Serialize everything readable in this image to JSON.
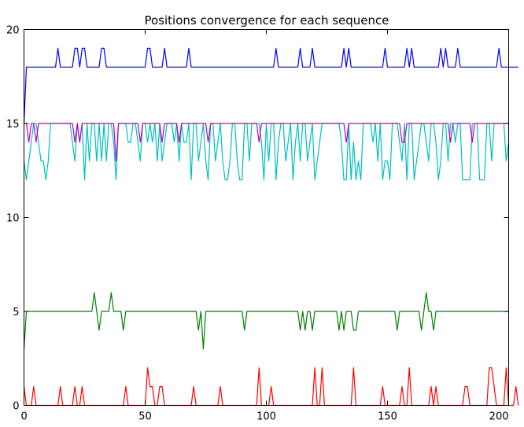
{
  "chart_data": {
    "type": "line",
    "title": "Positions convergence for each sequence",
    "xlabel": "",
    "ylabel": "",
    "xlim": [
      0,
      200
    ],
    "ylim": [
      0,
      20
    ],
    "xticks": [
      0,
      50,
      100,
      150,
      200
    ],
    "yticks": [
      0,
      5,
      10,
      15,
      20
    ],
    "grid": false,
    "series": [
      {
        "color": "#0000ff",
        "base": 18,
        "start": 15,
        "values": [
          15,
          18,
          18,
          18,
          18,
          18,
          18,
          18,
          18,
          18,
          18,
          18,
          18,
          18,
          19,
          18,
          18,
          18,
          18,
          18,
          18,
          19,
          19,
          18,
          19,
          19,
          18,
          18,
          18,
          18,
          18,
          18,
          19,
          19,
          18,
          18,
          18,
          18,
          18,
          18,
          18,
          18,
          18,
          18,
          18,
          18,
          18,
          18,
          18,
          18,
          18,
          19,
          19,
          18,
          18,
          18,
          18,
          18,
          19,
          18,
          18,
          18,
          18,
          18,
          18,
          18,
          18,
          18,
          19,
          18,
          18,
          18,
          18,
          18,
          18,
          18,
          18,
          18,
          18,
          18,
          18,
          18,
          18,
          18,
          18,
          18,
          18,
          18,
          18,
          18,
          18,
          18,
          18,
          18,
          18,
          18,
          18,
          18,
          18,
          18,
          18,
          18,
          18,
          18,
          19,
          18,
          18,
          18,
          18,
          18,
          18,
          18,
          18,
          18,
          19,
          18,
          18,
          18,
          18,
          19,
          18,
          18,
          18,
          18,
          18,
          18,
          18,
          18,
          18,
          18,
          18,
          18,
          19,
          18,
          19,
          18,
          18,
          18,
          18,
          18,
          18,
          18,
          18,
          18,
          18,
          18,
          18,
          18,
          18,
          19,
          18,
          18,
          18,
          18,
          18,
          18,
          18,
          18,
          19,
          18,
          19,
          18,
          18,
          18,
          18,
          18,
          18,
          18,
          18,
          18,
          18,
          18,
          19,
          18,
          19,
          18,
          18,
          18,
          18,
          19,
          18,
          18,
          18,
          18,
          18,
          18,
          18,
          18,
          18,
          18,
          18,
          18,
          18,
          18,
          18,
          18,
          19,
          18,
          18,
          18,
          18,
          18,
          18,
          18,
          18
        ]
      },
      {
        "color": "#00bfbf",
        "values": [
          13,
          12,
          13,
          14,
          15,
          15,
          14,
          13,
          13,
          12,
          13,
          15,
          15,
          15,
          15,
          15,
          15,
          15,
          15,
          15,
          14,
          13,
          15,
          14,
          15,
          12,
          15,
          13,
          15,
          15,
          13,
          15,
          13,
          15,
          13,
          15,
          15,
          14,
          12,
          15,
          15,
          15,
          15,
          14,
          14,
          15,
          15,
          14,
          13,
          15,
          15,
          14,
          15,
          14,
          15,
          13,
          15,
          13,
          14,
          15,
          15,
          15,
          14,
          15,
          13,
          15,
          14,
          14,
          15,
          12,
          15,
          15,
          13,
          14,
          15,
          13,
          12,
          15,
          15,
          13,
          14,
          15,
          13,
          12,
          12,
          13,
          15,
          15,
          13,
          12,
          12,
          15,
          15,
          13,
          15,
          15,
          15,
          15,
          14,
          12,
          15,
          13,
          15,
          15,
          12,
          14,
          15,
          15,
          13,
          14,
          15,
          12,
          14,
          15,
          13,
          15,
          15,
          13,
          14,
          15,
          12,
          13,
          14,
          15,
          15,
          15,
          15,
          15,
          15,
          15,
          15,
          14,
          12,
          12,
          15,
          12,
          14,
          12,
          13,
          12,
          15,
          15,
          15,
          15,
          14,
          15,
          13,
          15,
          12,
          13,
          13,
          12,
          15,
          15,
          15,
          14,
          13,
          15,
          12,
          15,
          15,
          12,
          13,
          14,
          15,
          15,
          14,
          13,
          15,
          15,
          14,
          12,
          13,
          15,
          15,
          13,
          15,
          15,
          14,
          15,
          15,
          12,
          12,
          12,
          12,
          15,
          15,
          15,
          12,
          12,
          12,
          15,
          15,
          13,
          15,
          15,
          15,
          15,
          15,
          13,
          14
        ]
      },
      {
        "color": "#bf00bf",
        "values": [
          15,
          15,
          14,
          15,
          15,
          14,
          15,
          15,
          15,
          15,
          15,
          15,
          15,
          15,
          15,
          15,
          15,
          15,
          15,
          15,
          15,
          14,
          15,
          14,
          15,
          15,
          15,
          15,
          15,
          15,
          15,
          15,
          15,
          15,
          15,
          15,
          15,
          15,
          13,
          15,
          15,
          15,
          15,
          15,
          15,
          15,
          15,
          15,
          14,
          15,
          15,
          15,
          15,
          15,
          15,
          15,
          15,
          14,
          15,
          15,
          15,
          15,
          15,
          15,
          14,
          15,
          15,
          15,
          15,
          15,
          15,
          15,
          15,
          15,
          15,
          15,
          14,
          15,
          15,
          15,
          15,
          15,
          15,
          15,
          15,
          15,
          15,
          15,
          15,
          15,
          15,
          15,
          15,
          15,
          15,
          15,
          15,
          14,
          15,
          15,
          15,
          15,
          15,
          15,
          15,
          15,
          15,
          15,
          15,
          15,
          15,
          15,
          15,
          15,
          15,
          15,
          15,
          15,
          15,
          15,
          15,
          15,
          15,
          15,
          15,
          15,
          15,
          15,
          15,
          15,
          15,
          15,
          15,
          14,
          15,
          15,
          15,
          15,
          15,
          15,
          15,
          15,
          15,
          15,
          15,
          15,
          15,
          15,
          15,
          15,
          15,
          15,
          15,
          15,
          15,
          15,
          14,
          14,
          15,
          15,
          15,
          15,
          15,
          15,
          15,
          15,
          15,
          15,
          15,
          15,
          15,
          15,
          15,
          15,
          15,
          15,
          14,
          15,
          15,
          15,
          15,
          15,
          15,
          15,
          15,
          14,
          15,
          15,
          15,
          15,
          15,
          15,
          15,
          15,
          15,
          15,
          15,
          15,
          15,
          15,
          15
        ]
      },
      {
        "color": "#007f00",
        "values": [
          3,
          5,
          5,
          5,
          5,
          5,
          5,
          5,
          5,
          5,
          5,
          5,
          5,
          5,
          5,
          5,
          5,
          5,
          5,
          5,
          5,
          5,
          5,
          5,
          5,
          5,
          5,
          5,
          5,
          6,
          5,
          4,
          5,
          5,
          5,
          5,
          6,
          5,
          5,
          5,
          5,
          4,
          5,
          5,
          5,
          5,
          5,
          5,
          5,
          5,
          5,
          5,
          5,
          5,
          5,
          5,
          5,
          5,
          5,
          5,
          5,
          5,
          5,
          5,
          5,
          5,
          5,
          5,
          5,
          5,
          5,
          5,
          4,
          5,
          3,
          5,
          5,
          5,
          5,
          5,
          5,
          5,
          5,
          5,
          5,
          5,
          5,
          5,
          5,
          5,
          5,
          4,
          5,
          5,
          5,
          5,
          5,
          5,
          5,
          5,
          5,
          5,
          5,
          5,
          5,
          5,
          5,
          5,
          5,
          5,
          5,
          5,
          5,
          5,
          4,
          5,
          4,
          5,
          5,
          4,
          5,
          5,
          5,
          5,
          5,
          5,
          5,
          5,
          5,
          5,
          4,
          5,
          4,
          5,
          5,
          5,
          4,
          4,
          5,
          5,
          5,
          5,
          5,
          5,
          5,
          5,
          5,
          5,
          5,
          5,
          5,
          5,
          5,
          5,
          4,
          5,
          5,
          5,
          5,
          5,
          5,
          5,
          5,
          5,
          4,
          5,
          6,
          5,
          5,
          4,
          5,
          5,
          5,
          5,
          5,
          5,
          5,
          5,
          5,
          5,
          5,
          5,
          5,
          5,
          5,
          5,
          5,
          5,
          5,
          5,
          5,
          5,
          5,
          5,
          5,
          5,
          5,
          5,
          5,
          5,
          5
        ]
      },
      {
        "color": "#ff0000",
        "values": [
          1,
          0,
          0,
          0,
          1,
          0,
          0,
          0,
          0,
          0,
          0,
          0,
          0,
          0,
          0,
          1,
          0,
          0,
          0,
          0,
          0,
          1,
          0,
          0,
          1,
          0,
          0,
          0,
          0,
          0,
          0,
          0,
          0,
          0,
          0,
          0,
          0,
          0,
          0,
          0,
          0,
          0,
          1,
          0,
          0,
          0,
          0,
          0,
          0,
          0,
          0,
          2,
          1,
          1,
          0,
          0,
          1,
          1,
          0,
          0,
          0,
          0,
          0,
          0,
          0,
          0,
          0,
          0,
          0,
          0,
          1,
          0,
          0,
          0,
          0,
          0,
          0,
          0,
          0,
          0,
          0,
          1,
          0,
          0,
          0,
          0,
          0,
          0,
          0,
          0,
          0,
          0,
          0,
          0,
          0,
          0,
          0,
          2,
          0,
          0,
          0,
          0,
          1,
          0,
          0,
          0,
          0,
          0,
          0,
          0,
          0,
          0,
          0,
          0,
          0,
          0,
          0,
          0,
          0,
          0,
          2,
          0,
          0,
          2,
          0,
          0,
          0,
          0,
          0,
          0,
          0,
          0,
          0,
          0,
          0,
          0,
          2,
          0,
          0,
          0,
          0,
          0,
          0,
          0,
          0,
          0,
          0,
          0,
          1,
          0,
          0,
          0,
          0,
          0,
          0,
          0,
          1,
          0,
          0,
          2,
          0,
          0,
          0,
          0,
          0,
          0,
          0,
          0,
          1,
          0,
          1,
          0,
          0,
          0,
          0,
          0,
          0,
          0,
          0,
          0,
          0,
          0,
          1,
          1,
          0,
          0,
          0,
          0,
          0,
          0,
          0,
          0,
          2,
          2,
          1,
          0,
          0,
          0,
          0,
          2,
          0,
          0,
          0,
          1,
          0
        ]
      }
    ]
  }
}
